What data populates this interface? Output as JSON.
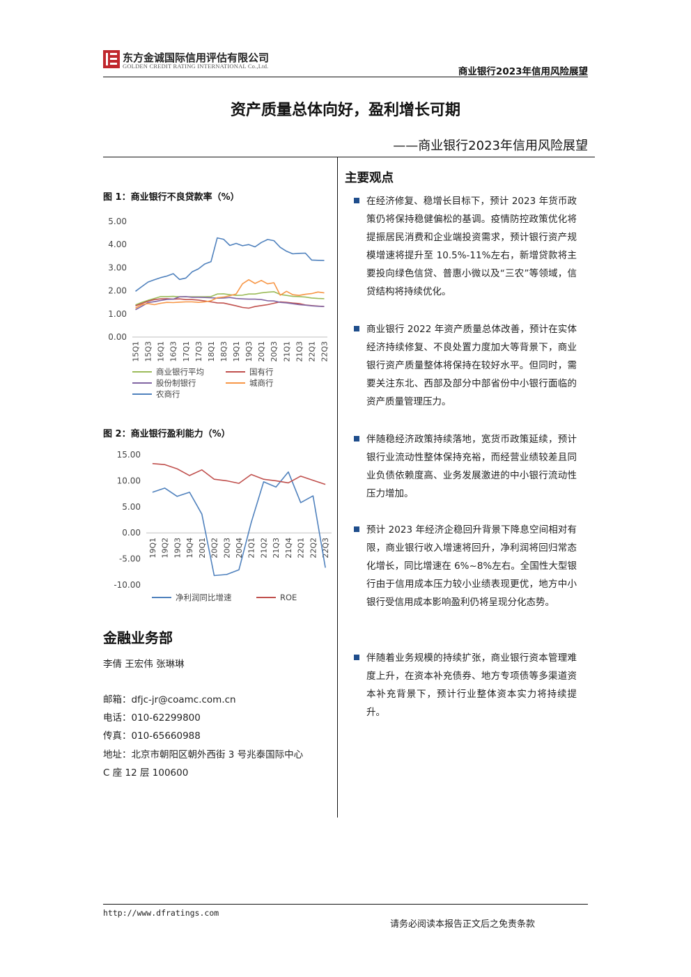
{
  "header": {
    "company_cn": "东方金诚国际信用评估有限公司",
    "company_en": "GOLDEN CREDIT RATING INTERNATIONAL Co.,Ltd.",
    "report_short": "商业银行2023年信用风险展望"
  },
  "title": {
    "main": "资产质量总体向好，盈利增长可期",
    "sub": "——商业银行2023年信用风险展望"
  },
  "figure1": {
    "title": "图 1：商业银行不良贷款率（%）"
  },
  "figure2": {
    "title": "图 2：商业银行盈利能力（%）"
  },
  "chart_data": [
    {
      "type": "line",
      "title": "图 1：商业银行不良贷款率（%）",
      "x": [
        "15Q1",
        "15Q2",
        "15Q3",
        "15Q4",
        "16Q1",
        "16Q2",
        "16Q3",
        "16Q4",
        "17Q1",
        "17Q2",
        "17Q3",
        "17Q4",
        "18Q1",
        "18Q2",
        "18Q3",
        "18Q4",
        "19Q1",
        "19Q2",
        "19Q3",
        "19Q4",
        "20Q1",
        "20Q2",
        "20Q3",
        "20Q4",
        "21Q1",
        "21Q2",
        "21Q3",
        "21Q4",
        "22Q1",
        "22Q2",
        "22Q3"
      ],
      "x_tick_labels": [
        "15Q1",
        "15Q3",
        "16Q1",
        "16Q3",
        "17Q1",
        "17Q3",
        "18Q1",
        "18Q3",
        "19Q1",
        "19Q3",
        "20Q1",
        "20Q3",
        "21Q1",
        "21Q3",
        "22Q1",
        "22Q3"
      ],
      "ylim": [
        0,
        5
      ],
      "y_ticks": [
        "0.00",
        "1.00",
        "2.00",
        "3.00",
        "4.00",
        "5.00"
      ],
      "legend_position": "bottom",
      "series": [
        {
          "name": "商业银行平均",
          "color": "#9bbb59",
          "values": [
            1.39,
            1.5,
            1.59,
            1.67,
            1.75,
            1.75,
            1.76,
            1.74,
            1.74,
            1.74,
            1.74,
            1.74,
            1.75,
            1.86,
            1.87,
            1.83,
            1.8,
            1.81,
            1.86,
            1.86,
            1.91,
            1.94,
            1.96,
            1.84,
            1.8,
            1.76,
            1.75,
            1.73,
            1.69,
            1.67,
            1.66
          ]
        },
        {
          "name": "国有行",
          "color": "#c0504d",
          "values": [
            1.35,
            1.45,
            1.55,
            1.62,
            1.65,
            1.66,
            1.64,
            1.65,
            1.62,
            1.62,
            1.6,
            1.56,
            1.52,
            1.48,
            1.47,
            1.41,
            1.35,
            1.28,
            1.25,
            1.32,
            1.36,
            1.4,
            1.46,
            1.52,
            1.5,
            1.47,
            1.45,
            1.39,
            1.36,
            1.34,
            1.32
          ]
        },
        {
          "name": "股份制银行",
          "color": "#8064a2",
          "values": [
            1.18,
            1.33,
            1.49,
            1.53,
            1.58,
            1.63,
            1.64,
            1.74,
            1.75,
            1.72,
            1.72,
            1.71,
            1.7,
            1.68,
            1.69,
            1.71,
            1.67,
            1.65,
            1.64,
            1.64,
            1.62,
            1.57,
            1.56,
            1.5,
            1.48,
            1.44,
            1.4,
            1.38,
            1.35,
            1.33,
            1.32
          ]
        },
        {
          "name": "城商行",
          "color": "#f79646",
          "values": [
            1.25,
            1.4,
            1.45,
            1.4,
            1.46,
            1.5,
            1.49,
            1.51,
            1.52,
            1.52,
            1.5,
            1.52,
            1.57,
            1.7,
            1.73,
            1.79,
            1.86,
            2.3,
            2.48,
            2.32,
            2.45,
            2.3,
            2.35,
            1.81,
            1.98,
            1.83,
            1.8,
            1.85,
            1.88,
            1.95,
            1.91
          ]
        },
        {
          "name": "农商行",
          "color": "#4f81bd",
          "values": [
            1.98,
            2.18,
            2.38,
            2.48,
            2.57,
            2.64,
            2.74,
            2.49,
            2.55,
            2.82,
            2.95,
            3.16,
            3.26,
            4.29,
            4.23,
            3.96,
            4.05,
            3.95,
            4.0,
            3.9,
            4.09,
            4.22,
            4.17,
            3.88,
            3.71,
            3.6,
            3.62,
            3.63,
            3.33,
            3.32,
            3.31
          ]
        }
      ]
    },
    {
      "type": "line",
      "title": "图 2：商业银行盈利能力（%）",
      "x": [
        "19Q1",
        "19Q2",
        "19Q3",
        "19Q4",
        "20Q1",
        "20Q2",
        "20Q3",
        "20Q4",
        "21Q1",
        "21Q2",
        "21Q3",
        "21Q4",
        "22Q1",
        "22Q2",
        "22Q3"
      ],
      "ylim": [
        -10,
        15
      ],
      "y_ticks": [
        "-10.00",
        "-5.00",
        "0.00",
        "5.00",
        "10.00",
        "15.00"
      ],
      "legend_position": "bottom",
      "series": [
        {
          "name": "净利润同比增速",
          "color": "#4f81bd",
          "values": [
            7.8,
            8.6,
            7.0,
            7.8,
            3.6,
            -8.2,
            -8.0,
            -7.1,
            2.0,
            9.8,
            8.8,
            11.7,
            5.8,
            7.1,
            -6.7
          ]
        },
        {
          "name": "ROE",
          "color": "#c0504d",
          "values": [
            13.3,
            13.1,
            12.3,
            11.0,
            12.1,
            10.3,
            10.0,
            9.5,
            11.2,
            10.3,
            10.0,
            9.6,
            10.9,
            10.1,
            9.3
          ]
        }
      ]
    }
  ],
  "key_points": {
    "title": "主要观点",
    "items": [
      "在经济修复、稳增长目标下，预计 2023 年货币政策仍将保持稳健偏松的基调。疫情防控政策优化将提振居民消费和企业端投资需求，预计银行资产规模增速将提升至 10.5%-11%左右，新增贷款将主要投向绿色信贷、普惠小微以及“三农”等领域，信贷结构将持续优化。",
      "商业银行 2022 年资产质量总体改善，预计在实体经济持续修复、不良处置力度加大等背景下，商业银行资产质量整体将保持在较好水平。但同时，需要关注东北、西部及部分中部省份中小银行面临的资产质量管理压力。",
      "伴随稳经济政策持续落地，宽货币政策延续，预计银行业流动性整体保持充裕，而经营业绩较差且同业负债依赖度高、业务发展激进的中小银行流动性压力增加。",
      "预计 2023 年经济企稳回升背景下降息空间相对有限，商业银行收入增速将回升，净利润将回归常态化增长，同比增速在 6%~8%左右。全国性大型银行由于信用成本压力较小业绩表现更优，地方中小银行受信用成本影响盈利仍将呈现分化态势。",
      "伴随着业务规模的持续扩张，商业银行资本管理难度上升，在资本补充债券、地方专项债等多渠道资本补充背景下，预计行业整体资本实力将持续提升。"
    ]
  },
  "department": {
    "title": "金融业务部",
    "authors": "李倩  王宏伟  张琳琳",
    "email": "邮箱：dfjc-jr@coamc.com.cn",
    "phone": "电话：010-62299800",
    "fax": "传真：010-65660988",
    "address_line1": "地址：北京市朝阳区朝外西街 3 号兆泰国际中心",
    "address_line2": "C 座 12 层 100600"
  },
  "footer": {
    "url": "http://www.dfratings.com",
    "note": "请务必阅读本报告正文后之免责条款"
  }
}
